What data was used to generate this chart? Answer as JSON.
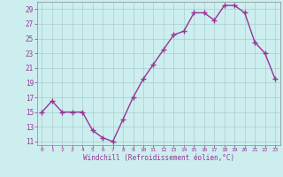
{
  "x": [
    0,
    1,
    2,
    3,
    4,
    5,
    6,
    7,
    8,
    9,
    10,
    11,
    12,
    13,
    14,
    15,
    16,
    17,
    18,
    19,
    20,
    21,
    22,
    23
  ],
  "y": [
    15,
    16.5,
    15,
    15,
    15,
    12.5,
    11.5,
    11,
    14,
    17,
    19.5,
    21.5,
    23.5,
    25.5,
    26,
    28.5,
    28.5,
    27.5,
    29.5,
    29.5,
    28.5,
    24.5,
    23,
    19.5
  ],
  "line_color": "#993399",
  "marker": "+",
  "marker_color": "#993399",
  "bg_color": "#cceeee",
  "grid_color": "#aacccc",
  "xlabel": "Windchill (Refroidissement éolien,°C)",
  "xlabel_color": "#993399",
  "tick_color": "#993399",
  "ylim": [
    10.5,
    30
  ],
  "yticks": [
    11,
    13,
    15,
    17,
    19,
    21,
    23,
    25,
    27,
    29
  ],
  "xticks": [
    0,
    1,
    2,
    3,
    4,
    5,
    6,
    7,
    8,
    9,
    10,
    11,
    12,
    13,
    14,
    15,
    16,
    17,
    18,
    19,
    20,
    21,
    22,
    23
  ],
  "line_width": 1.0,
  "marker_size": 4
}
